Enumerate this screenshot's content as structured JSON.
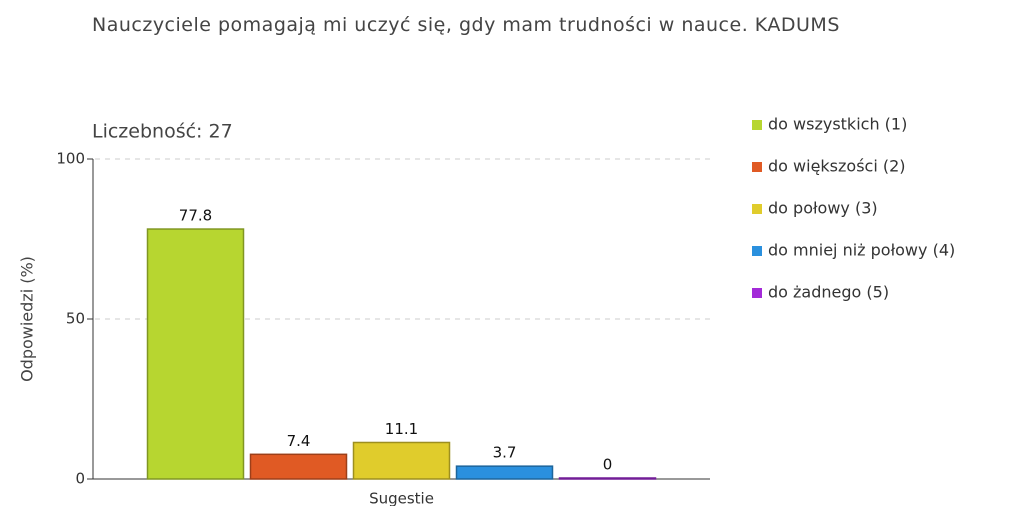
{
  "chart_data": {
    "type": "bar",
    "title": "Nauczyciele pomagają mi uczyć się, gdy mam trudności w nauce. KADUMS",
    "subtitle": "Liczebność: 27",
    "y_label": "Odpowiedzi (%)",
    "categories": [
      "Sugestie"
    ],
    "series": [
      {
        "name": "do wszystkich (1)",
        "color": "#b7d630",
        "values": [
          77.8
        ]
      },
      {
        "name": "do większości (2)",
        "color": "#e05a24",
        "values": [
          7.4
        ]
      },
      {
        "name": "do połowy (3)",
        "color": "#e0cc2c",
        "values": [
          11.1
        ]
      },
      {
        "name": "do mniej niż połowy (4)",
        "color": "#2a90de",
        "values": [
          3.7
        ]
      },
      {
        "name": "do żadnego (5)",
        "color": "#a32ad8",
        "values": [
          0
        ]
      }
    ],
    "ylim": [
      0,
      100
    ],
    "yticks": [
      0,
      50,
      100
    ],
    "grid": true,
    "legend": "right"
  }
}
